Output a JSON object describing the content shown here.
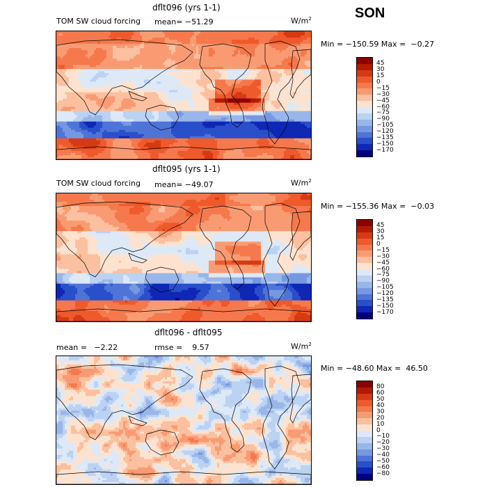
{
  "season": "SON",
  "panels": [
    {
      "title": "dflt096 (yrs 1-1)",
      "left_label": "TOM SW cloud forcing",
      "mid_label": "mean= −51.29",
      "units": "W/m",
      "units_exp": "2",
      "minmax": "Min = −150.59 Max =  −0.27",
      "scale": {
        "labels": [
          "45",
          "30",
          "15",
          "0",
          "−15",
          "−30",
          "−45",
          "−60",
          "−75",
          "−90",
          "−105",
          "−120",
          "−135",
          "−150",
          "−170"
        ],
        "colors": [
          "#8b0000",
          "#b31a00",
          "#d63a12",
          "#ee5a2c",
          "#f5794d",
          "#f99b72",
          "#fbc09f",
          "#fde3cf",
          "#dde9f7",
          "#bcd2f2",
          "#99b6ea",
          "#7698e2",
          "#4f74d7",
          "#2a4fcb",
          "#0f27b5",
          "#000080"
        ]
      }
    },
    {
      "title": "dflt095 (yrs 1-1)",
      "left_label": "TOM SW cloud forcing",
      "mid_label": "mean= −49.07",
      "units": "W/m",
      "units_exp": "2",
      "minmax": "Min = −155.36 Max =  −0.03",
      "scale": {
        "labels": [
          "45",
          "30",
          "15",
          "0",
          "−15",
          "−30",
          "−45",
          "−60",
          "−75",
          "−90",
          "−105",
          "−120",
          "−135",
          "−150",
          "−170"
        ],
        "colors": [
          "#8b0000",
          "#b31a00",
          "#d63a12",
          "#ee5a2c",
          "#f5794d",
          "#f99b72",
          "#fbc09f",
          "#fde3cf",
          "#dde9f7",
          "#bcd2f2",
          "#99b6ea",
          "#7698e2",
          "#4f74d7",
          "#2a4fcb",
          "#0f27b5",
          "#000080"
        ]
      }
    },
    {
      "title": "dflt096 - dflt095",
      "left_label": "mean =   −2.22",
      "mid_label": "rmse =    9.57",
      "units": "W/m",
      "units_exp": "2",
      "minmax": "Min = −48.60 Max =  46.50",
      "scale": {
        "labels": [
          "80",
          "60",
          "50",
          "40",
          "30",
          "20",
          "10",
          "0",
          "−10",
          "−20",
          "−30",
          "−40",
          "−50",
          "−60",
          "−80"
        ],
        "colors": [
          "#8b0000",
          "#b31a00",
          "#d63a12",
          "#ee5a2c",
          "#f5794d",
          "#f99b72",
          "#fbc09f",
          "#fde3cf",
          "#dde9f7",
          "#bcd2f2",
          "#99b6ea",
          "#7698e2",
          "#4f74d7",
          "#2a4fcb",
          "#0f27b5",
          "#000080"
        ]
      }
    }
  ]
}
